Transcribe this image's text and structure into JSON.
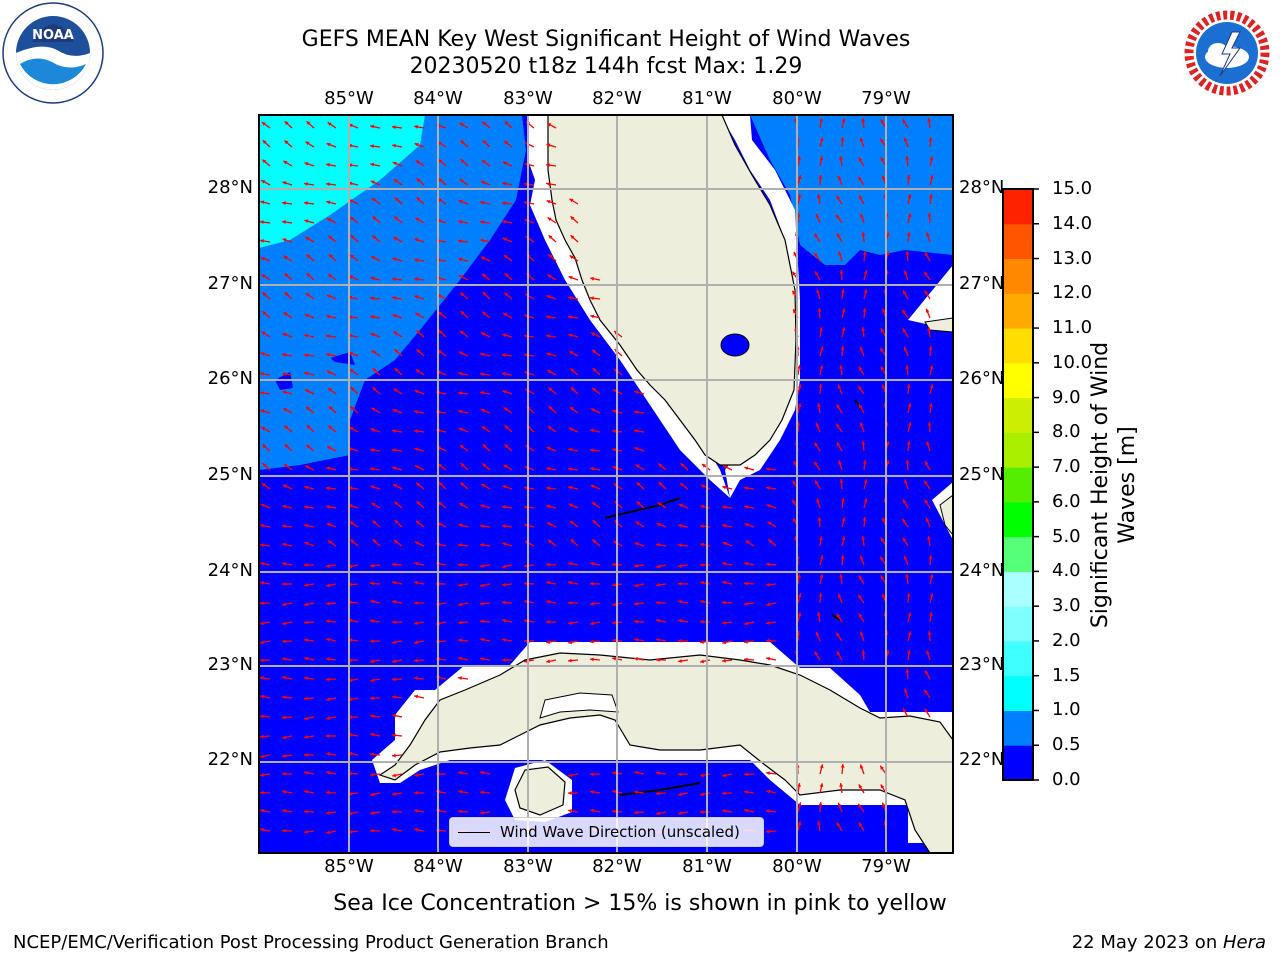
{
  "header": {
    "title_line1": "GEFS MEAN Key West Significant Height of Wind Waves",
    "title_line2": "20230520 t18z 144h fcst   Max: 1.29"
  },
  "logos": {
    "noaa_text": "NOAA",
    "noaa_ring_text": "NATIONAL OCEANIC AND ATMOSPHERIC ADMINISTRATION · U.S. DEPARTMENT OF COMMERCE",
    "nws_ring_text": "NATIONAL WEATHER SERVICE"
  },
  "map": {
    "lon_ticks": [
      "85°W",
      "84°W",
      "83°W",
      "82°W",
      "81°W",
      "80°W",
      "79°W"
    ],
    "lat_ticks": [
      "28°N",
      "27°N",
      "26°N",
      "25°N",
      "24°N",
      "23°N",
      "22°N"
    ],
    "legend_label": "Wind Wave Direction (unscaled)",
    "colors": {
      "ocean_low": "#0000ff",
      "ocean_mid": "#0080ff",
      "ocean_high": "#00ffff",
      "land": "#eeeedd",
      "arrow": "#ff0000",
      "grid": "#b0b0b0"
    }
  },
  "colorbar": {
    "label": "Significant Height of Wind Waves [m]",
    "ticks": [
      "0.0",
      "0.5",
      "1.0",
      "1.5",
      "2.0",
      "3.0",
      "4.0",
      "5.0",
      "6.0",
      "7.0",
      "8.0",
      "9.0",
      "10.0",
      "11.0",
      "12.0",
      "13.0",
      "14.0",
      "15.0"
    ],
    "colors": [
      "#0000ff",
      "#0080ff",
      "#00ffff",
      "#40ffff",
      "#80ffff",
      "#aaffff",
      "#55ff77",
      "#00ff00",
      "#55ee00",
      "#aaee00",
      "#ccee00",
      "#ffff00",
      "#ffdd00",
      "#ffaa00",
      "#ff8800",
      "#ff5500",
      "#ff2200",
      "#ff0000"
    ]
  },
  "footer": {
    "note": "Sea Ice Concentration > 15% is shown in pink to yellow",
    "left": "NCEP/EMC/Verification Post Processing Product Generation Branch",
    "right_date": "22 May 2023 on ",
    "right_host": "Hera"
  }
}
